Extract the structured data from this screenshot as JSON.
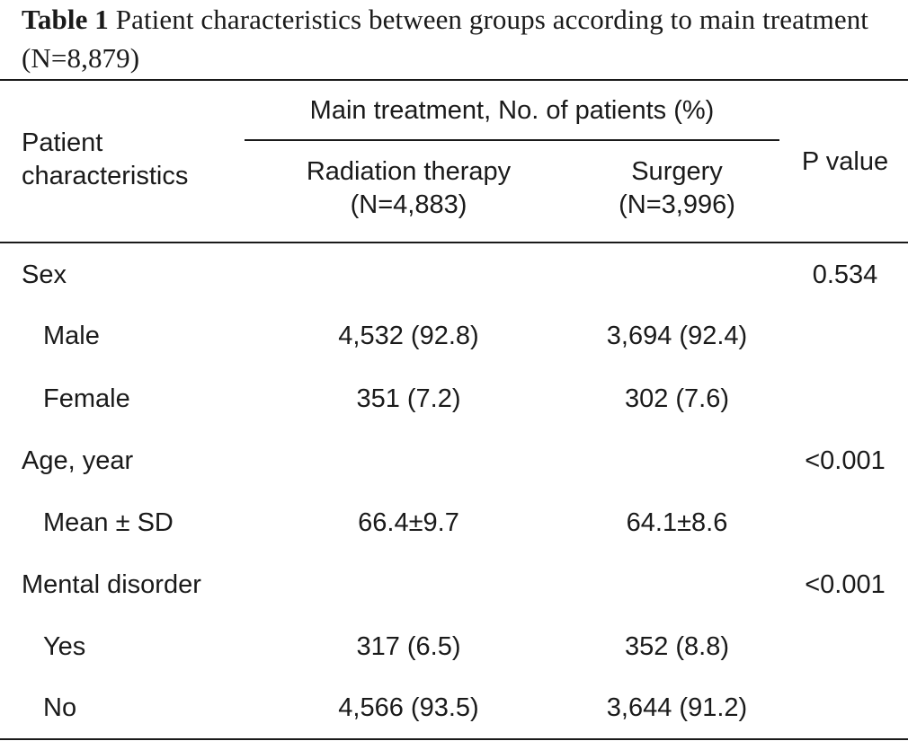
{
  "caption": {
    "label": "Table 1",
    "text": "Patient characteristics between groups according to main treatment (N=8,879)"
  },
  "header": {
    "patient_characteristics": "Patient characteristics",
    "group_title": "Main treatment, No. of patients (%)",
    "radiation_title": "Radiation therapy",
    "radiation_n": "(N=4,883)",
    "surgery_title": "Surgery",
    "surgery_n": "(N=3,996)",
    "p_value": "P value"
  },
  "rows": [
    {
      "label": "Sex",
      "radiation": "",
      "surgery": "",
      "p": "0.534"
    },
    {
      "label": "Male",
      "radiation": "4,532 (92.8)",
      "surgery": "3,694 (92.4)",
      "p": ""
    },
    {
      "label": "Female",
      "radiation": "351 (7.2)",
      "surgery": "302 (7.6)",
      "p": ""
    },
    {
      "label": "Age, year",
      "radiation": "",
      "surgery": "",
      "p": "<0.001"
    },
    {
      "label": "Mean ± SD",
      "radiation": "66.4±9.7",
      "surgery": "64.1±8.6",
      "p": ""
    },
    {
      "label": "Mental disorder",
      "radiation": "",
      "surgery": "",
      "p": "<0.001"
    },
    {
      "label": "Yes",
      "radiation": "317 (6.5)",
      "surgery": "352 (8.8)",
      "p": ""
    },
    {
      "label": "No",
      "radiation": "4,566 (93.5)",
      "surgery": "3,644 (91.2)",
      "p": ""
    }
  ]
}
